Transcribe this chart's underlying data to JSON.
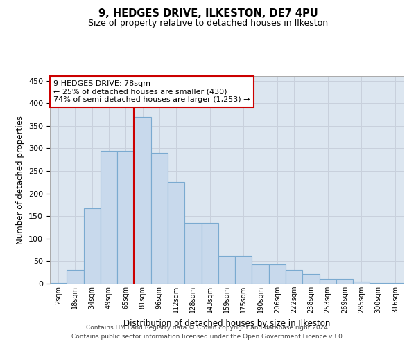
{
  "title1": "9, HEDGES DRIVE, ILKESTON, DE7 4PU",
  "title2": "Size of property relative to detached houses in Ilkeston",
  "xlabel": "Distribution of detached houses by size in Ilkeston",
  "ylabel": "Number of detached properties",
  "categories": [
    "2sqm",
    "18sqm",
    "34sqm",
    "49sqm",
    "65sqm",
    "81sqm",
    "96sqm",
    "112sqm",
    "128sqm",
    "143sqm",
    "159sqm",
    "175sqm",
    "190sqm",
    "206sqm",
    "222sqm",
    "238sqm",
    "253sqm",
    "269sqm",
    "285sqm",
    "300sqm",
    "316sqm"
  ],
  "values": [
    1,
    30,
    167,
    295,
    295,
    370,
    290,
    225,
    135,
    135,
    62,
    62,
    43,
    43,
    30,
    22,
    10,
    10,
    5,
    2,
    1
  ],
  "bar_color": "#c8d9ec",
  "bar_edge_color": "#7aaad0",
  "grid_color": "#c8d0dc",
  "background_color": "#dce6f0",
  "annotation_text": "9 HEDGES DRIVE: 78sqm\n← 25% of detached houses are smaller (430)\n74% of semi-detached houses are larger (1,253) →",
  "vline_x": 4.5,
  "vline_color": "#cc0000",
  "annot_box_color": "#ffffff",
  "annot_box_edge": "#cc0000",
  "footer1": "Contains HM Land Registry data © Crown copyright and database right 2024.",
  "footer2": "Contains public sector information licensed under the Open Government Licence v3.0.",
  "ylim": [
    0,
    460
  ],
  "yticks": [
    0,
    50,
    100,
    150,
    200,
    250,
    300,
    350,
    400,
    450
  ]
}
